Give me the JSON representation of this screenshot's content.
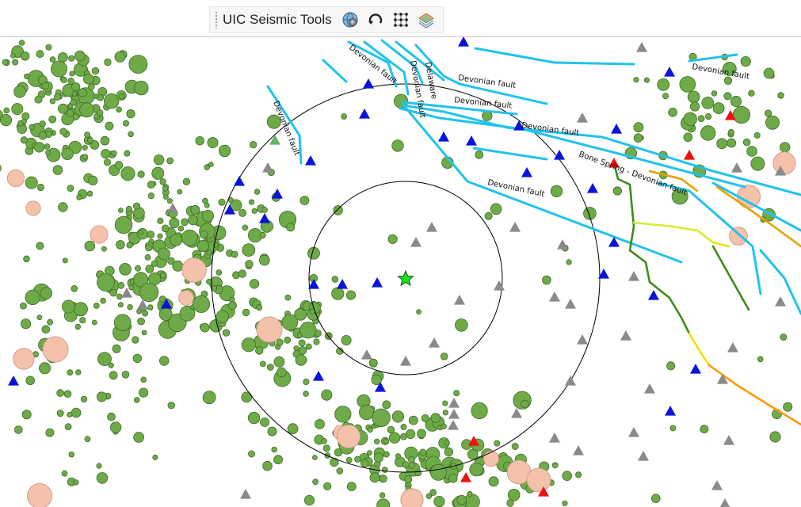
{
  "toolbar": {
    "title": "UIC Seismic Tools",
    "buttons": [
      {
        "name": "globe-tool-icon"
      },
      {
        "name": "refresh-icon"
      },
      {
        "name": "grid-points-icon"
      },
      {
        "name": "layers-icon"
      }
    ]
  },
  "map": {
    "fault_labels": [
      "Devonian fault",
      "Devonian fault",
      "Devonian fault",
      "Delaware",
      "Devonian fault",
      "Devonian fault",
      "Devonian fault",
      "Devonian fault",
      "Bone Spring - Devonian fault",
      "Devonian fault"
    ],
    "colors": {
      "earthquake_fill": "#6eab48",
      "earthquake_stroke": "#3f6b27",
      "large_event_fill": "#f4c2ab",
      "well_blue": "#0a14d8",
      "well_gray": "#8a8a8a",
      "well_red": "#ee1111",
      "fault_line": "#21c3ec",
      "target_star": "#22dd22"
    },
    "legend_marker_types": [
      "earthquake",
      "large-event",
      "well-blue",
      "well-gray",
      "well-red",
      "epicenter-star"
    ]
  }
}
